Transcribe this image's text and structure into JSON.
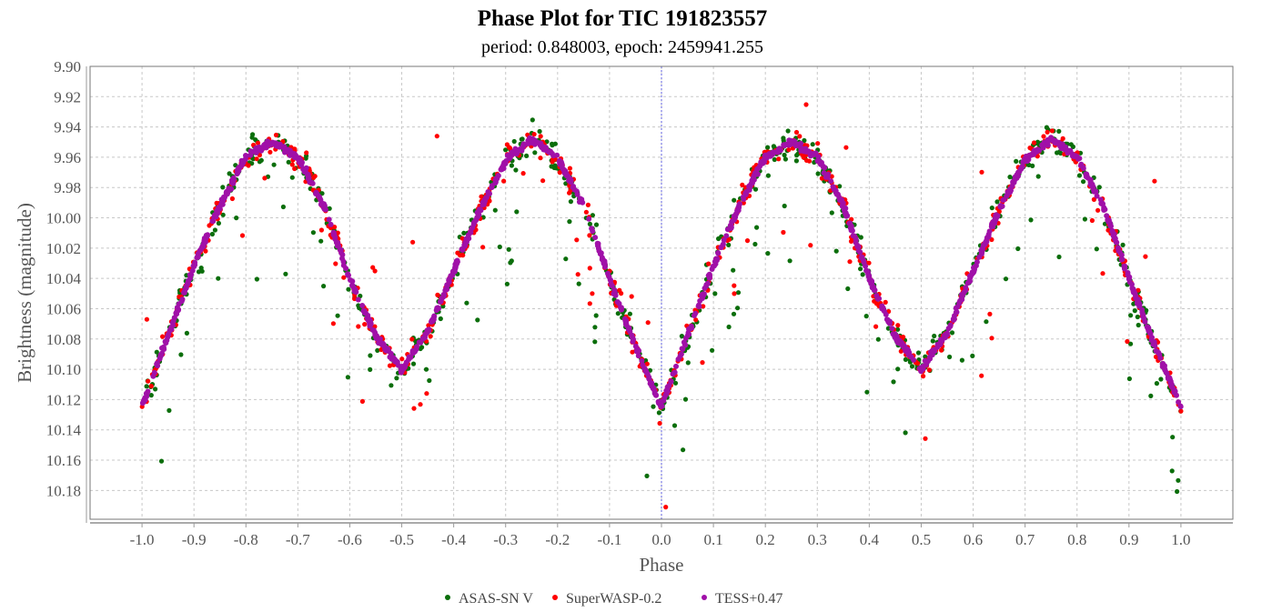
{
  "chart_data": {
    "type": "scatter",
    "title": "Phase Plot for TIC 191823557",
    "subtitle": "period: 0.848003, epoch: 2459941.255",
    "xlabel": "Phase",
    "ylabel": "Brightness (magnitude)",
    "xlim": [
      -1.1,
      1.1
    ],
    "ylim": [
      10.199,
      9.9
    ],
    "y_inverted": true,
    "grid": true,
    "zero_line": true,
    "legend_position": "bottom-center",
    "x_ticks": [
      "-1.0",
      "-0.9",
      "-0.8",
      "-0.7",
      "-0.6",
      "-0.5",
      "-0.4",
      "-0.3",
      "-0.2",
      "-0.1",
      "0.0",
      "0.1",
      "0.2",
      "0.3",
      "0.4",
      "0.5",
      "0.6",
      "0.7",
      "0.8",
      "0.9",
      "1.0"
    ],
    "y_ticks": [
      "9.90",
      "9.92",
      "9.94",
      "9.96",
      "9.98",
      "10.00",
      "10.02",
      "10.04",
      "10.06",
      "10.08",
      "10.10",
      "10.12",
      "10.14",
      "10.16",
      "10.18"
    ],
    "mean_curve": {
      "phase": [
        0,
        0.05,
        0.1,
        0.15,
        0.2,
        0.25,
        0.3,
        0.35,
        0.4,
        0.45,
        0.5,
        0.55,
        0.6,
        0.65,
        0.7,
        0.75,
        0.8,
        0.85,
        0.9,
        0.95,
        1.0
      ],
      "mag": [
        10.125,
        10.078,
        10.032,
        9.992,
        9.96,
        9.95,
        9.96,
        9.992,
        10.04,
        10.078,
        10.1,
        10.076,
        10.035,
        9.995,
        9.962,
        9.948,
        9.96,
        9.992,
        10.04,
        10.085,
        10.125
      ]
    },
    "series": [
      {
        "name": "ASAS-SN V",
        "color": "#0b6e0b",
        "count": 700,
        "scatter_sd": 0.012,
        "outlier_fraction": 0.12
      },
      {
        "name": "SuperWASP-0.2",
        "color": "#ff0000",
        "count": 700,
        "scatter_sd": 0.01,
        "outlier_fraction": 0.06
      },
      {
        "name": "TESS+0.47",
        "color": "#a010a8",
        "count": 1400,
        "scatter_sd": 0.0025,
        "outlier_fraction": 0
      }
    ]
  }
}
